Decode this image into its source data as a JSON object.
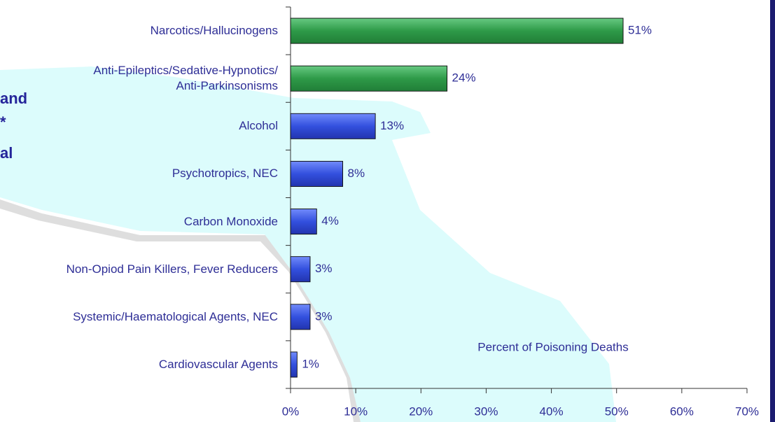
{
  "chart_data": {
    "type": "hbar",
    "categories": [
      "Narcotics/Hallucinogens",
      "Anti-Epileptics/Sedative-Hypnotics/\nAnti-Parkinsonisms",
      "Alcohol",
      "Psychotropics, NEC",
      "Carbon Monoxide",
      "Non-Opiod Pain Killers, Fever Reducers",
      "Systemic/Haematological Agents, NEC",
      "Cardiovascular Agents"
    ],
    "values": [
      51,
      24,
      13,
      8,
      4,
      3,
      3,
      1
    ],
    "value_labels": [
      "51%",
      "24%",
      "13%",
      "8%",
      "4%",
      "3%",
      "3%",
      "1%"
    ],
    "colors": [
      "#2e9a48",
      "#2e9a48",
      "#3350de",
      "#3350de",
      "#3350de",
      "#3350de",
      "#3350de",
      "#3350de"
    ],
    "xlim": [
      0,
      70
    ],
    "xticks": [
      {
        "value": 0,
        "label": "0%"
      },
      {
        "value": 10,
        "label": "10%"
      },
      {
        "value": 20,
        "label": "20%"
      },
      {
        "value": 30,
        "label": "30%"
      },
      {
        "value": 40,
        "label": "40%"
      },
      {
        "value": 50,
        "label": "50%"
      },
      {
        "value": 60,
        "label": "60%"
      },
      {
        "value": 70,
        "label": "70%"
      }
    ],
    "annotation": "Percent of Poisoning Deaths",
    "background_text": [
      "and",
      "*",
      "al"
    ]
  }
}
